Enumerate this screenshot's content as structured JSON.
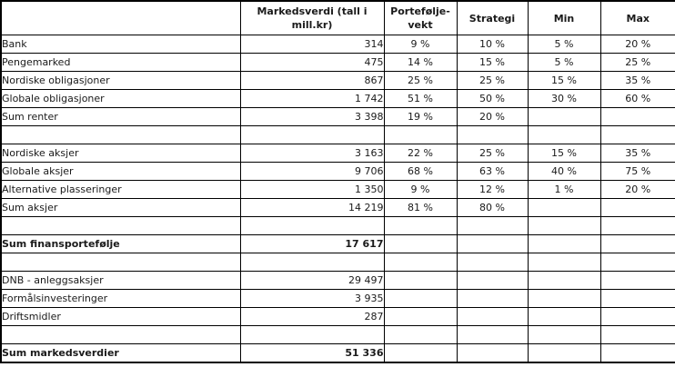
{
  "table": {
    "header": {
      "labels": [
        "",
        "Markedsverdi (tall i mill.kr)",
        "Portefølje-vekt",
        "Strategi",
        "Min",
        "Max"
      ]
    },
    "rows": [
      {
        "bold": false,
        "cells": [
          "Bank",
          "314",
          "9 %",
          "10 %",
          "5 %",
          "20 %"
        ]
      },
      {
        "bold": false,
        "cells": [
          "Pengemarked",
          "475",
          "14 %",
          "15 %",
          "5 %",
          "25 %"
        ]
      },
      {
        "bold": false,
        "cells": [
          "Nordiske obligasjoner",
          "867",
          "25 %",
          "25 %",
          "15 %",
          "35 %"
        ]
      },
      {
        "bold": false,
        "cells": [
          "Globale obligasjoner",
          "1 742",
          "51 %",
          "50 %",
          "30 %",
          "60 %"
        ]
      },
      {
        "bold": false,
        "cells": [
          "Sum renter",
          "3 398",
          "19 %",
          "20 %",
          "",
          ""
        ]
      },
      {
        "bold": false,
        "cells": [
          "",
          "",
          "",
          "",
          "",
          ""
        ]
      },
      {
        "bold": false,
        "cells": [
          "Nordiske aksjer",
          "3 163",
          "22 %",
          "25 %",
          "15 %",
          "35 %"
        ]
      },
      {
        "bold": false,
        "cells": [
          "Globale aksjer",
          "9 706",
          "68 %",
          "63 %",
          "40 %",
          "75 %"
        ]
      },
      {
        "bold": false,
        "cells": [
          "Alternative plasseringer",
          "1 350",
          "9 %",
          "12 %",
          "1 %",
          "20 %"
        ]
      },
      {
        "bold": false,
        "cells": [
          "Sum aksjer",
          "14 219",
          "81 %",
          "80 %",
          "",
          ""
        ]
      },
      {
        "bold": false,
        "cells": [
          "",
          "",
          "",
          "",
          "",
          ""
        ]
      },
      {
        "bold": true,
        "cells": [
          "Sum finansportefølje",
          "17 617",
          "",
          "",
          "",
          ""
        ]
      },
      {
        "bold": false,
        "cells": [
          "",
          "",
          "",
          "",
          "",
          ""
        ]
      },
      {
        "bold": false,
        "cells": [
          "DNB - anleggsaksjer",
          "29 497",
          "",
          "",
          "",
          ""
        ]
      },
      {
        "bold": false,
        "cells": [
          "Formålsinvesteringer",
          "3 935",
          "",
          "",
          "",
          ""
        ]
      },
      {
        "bold": false,
        "cells": [
          "Driftsmidler",
          "287",
          "",
          "",
          "",
          ""
        ]
      },
      {
        "bold": false,
        "cells": [
          "",
          "",
          "",
          "",
          "",
          ""
        ]
      },
      {
        "bold": true,
        "cells": [
          "Sum markedsverdier",
          "51 336",
          "",
          "",
          "",
          ""
        ]
      }
    ],
    "colors": {
      "border": "#000000",
      "text": "#1a1a1a",
      "background": "#ffffff"
    }
  }
}
